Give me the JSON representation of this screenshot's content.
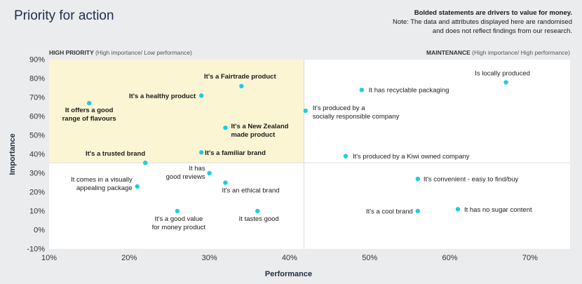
{
  "header": {
    "title": "Priority for action",
    "note_line1": "Bolded statements are drivers to value for money.",
    "note_line2": "Note: The data and attributes displayed here are randomised",
    "note_line3": "and does not reflect findings from our research."
  },
  "colors": {
    "background": "#ebecee",
    "plot_background": "#ffffff",
    "high_priority_quadrant": "#fcf5d3",
    "point": "#1dcde3",
    "divider": "#dddddd"
  },
  "chart_data": {
    "type": "scatter",
    "xlabel": "Performance",
    "ylabel": "Importance",
    "xlim": [
      10,
      75
    ],
    "ylim": [
      -10,
      90
    ],
    "x_ticks": [
      "10%",
      "20%",
      "30%",
      "40%",
      "50%",
      "60%",
      "70%"
    ],
    "y_ticks": [
      "-10%",
      "0%",
      "10%",
      "20%",
      "30%",
      "40%",
      "50%",
      "60%",
      "70%",
      "80%",
      "90%"
    ],
    "quadrant_split": {
      "x": 41.8,
      "y": 35.5
    },
    "quadrants": {
      "top_left": {
        "label": "HIGH PRIORITY",
        "sublabel": "(High importance/ Low performance)"
      },
      "top_right": {
        "label": "MAINTENANCE",
        "sublabel": "(High importance/ High performance)"
      }
    },
    "points": [
      {
        "x": 15,
        "y": 67,
        "label_lines": [
          "It offers a good",
          "range of flavours"
        ],
        "bold": true
      },
      {
        "x": 29,
        "y": 71,
        "label_lines": [
          "It's a healthy product"
        ],
        "bold": true
      },
      {
        "x": 34,
        "y": 76,
        "label_lines": [
          "It's a Fairtrade product"
        ],
        "bold": true
      },
      {
        "x": 32,
        "y": 54,
        "label_lines": [
          "It's a New Zealand",
          "made product"
        ],
        "bold": true
      },
      {
        "x": 29,
        "y": 41,
        "label_lines": [
          "It's a familiar brand"
        ],
        "bold": true
      },
      {
        "x": 22,
        "y": 35.5,
        "label_lines": [
          "It's a trusted brand"
        ],
        "bold": true
      },
      {
        "x": 42,
        "y": 63,
        "label_lines": [
          "It's produced by a",
          "socially responsible company"
        ],
        "bold": false
      },
      {
        "x": 49,
        "y": 74,
        "label_lines": [
          "It has recyclable packaging"
        ],
        "bold": false
      },
      {
        "x": 67,
        "y": 78,
        "label_lines": [
          "Is locally produced"
        ],
        "bold": false
      },
      {
        "x": 47,
        "y": 39,
        "label_lines": [
          "It's produced by a Kiwi owned company"
        ],
        "bold": false
      },
      {
        "x": 30,
        "y": 30,
        "label_lines": [
          "It has",
          "good reviews"
        ],
        "bold": false
      },
      {
        "x": 21,
        "y": 23,
        "label_lines": [
          "It comes in a visually",
          "appealing package"
        ],
        "bold": false
      },
      {
        "x": 32,
        "y": 25,
        "label_lines": [
          "It's an ethical brand"
        ],
        "bold": false
      },
      {
        "x": 26,
        "y": 10,
        "label_lines": [
          "It's a good value",
          "for money product"
        ],
        "bold": false
      },
      {
        "x": 36,
        "y": 10,
        "label_lines": [
          "It tastes good"
        ],
        "bold": false
      },
      {
        "x": 56,
        "y": 27,
        "label_lines": [
          "It's convenient - easy to find/buy"
        ],
        "bold": false
      },
      {
        "x": 56,
        "y": 10,
        "label_lines": [
          "It's a cool brand"
        ],
        "bold": false
      },
      {
        "x": 61,
        "y": 11,
        "label_lines": [
          "It has no sugar content"
        ],
        "bold": false
      }
    ]
  }
}
